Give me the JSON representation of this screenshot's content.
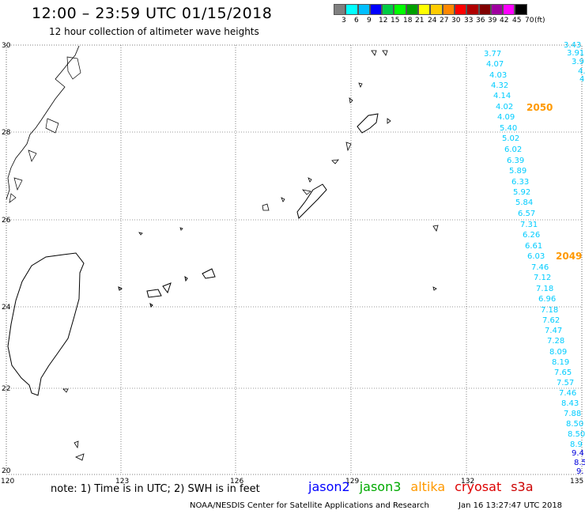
{
  "header": {
    "title": "12:00 – 23:59 UTC 01/15/2018",
    "subtitle": "12 hour collection of altimeter wave heights"
  },
  "legend_scale": {
    "colors": [
      "#808080",
      "#00ffff",
      "#00bfff",
      "#0000ff",
      "#00cc44",
      "#00ff00",
      "#00a000",
      "#ffff00",
      "#ffcc00",
      "#ff8800",
      "#ff0000",
      "#b00000",
      "#800000",
      "#a000a0",
      "#ff00ff",
      "#000000"
    ],
    "labels": [
      "3",
      "6",
      "9",
      "12",
      "15",
      "18",
      "21",
      "24",
      "27",
      "30",
      "33",
      "36",
      "39",
      "42",
      "45",
      "70",
      "(ft)"
    ]
  },
  "axes": {
    "lon_ticks": [
      "120",
      "123",
      "126",
      "129",
      "132",
      "135"
    ],
    "lat_ticks": [
      "30",
      "28",
      "26",
      "24",
      "22",
      "20"
    ]
  },
  "track": {
    "color": "#00ccff",
    "labels": [
      "3.43",
      "3.91",
      "3.9",
      "4.",
      "4.",
      "3.77",
      "4.07",
      "4.03",
      "4.32",
      "4.14",
      "4.02",
      "4.09",
      "5.40",
      "5.02",
      "6.02",
      "6.39",
      "5.89",
      "6.33",
      "5.92",
      "5.84",
      "6.57",
      "7.31",
      "6.26",
      "6.61",
      "6.03",
      "7.46",
      "7.12",
      "7.18",
      "6.96",
      "7.18",
      "7.62",
      "7.47",
      "7.28",
      "8.09",
      "8.19",
      "7.65",
      "7.57",
      "7.46",
      "8.43",
      "7.88",
      "8.50",
      "8.50",
      "8.9",
      "9.4",
      "8.5",
      "9."
    ],
    "time_markers": [
      {
        "label": "2050",
        "color": "#ff9900"
      },
      {
        "label": "2049",
        "color": "#ff9900"
      }
    ]
  },
  "footer": {
    "note": "note:  1) Time is in UTC;  2) SWH is in feet",
    "satellites": [
      {
        "name": "jason2",
        "color": "#0000ff"
      },
      {
        "name": "jason3",
        "color": "#00aa00"
      },
      {
        "name": "altika",
        "color": "#ff9900"
      },
      {
        "name": "cryosat",
        "color": "#dd0000"
      },
      {
        "name": "s3a",
        "color": "#cc0000"
      }
    ],
    "credit": "NOAA/NESDIS Center for Satellite Applications and Research",
    "timestamp": "Jan 16 13:27:47 UTC 2018"
  }
}
